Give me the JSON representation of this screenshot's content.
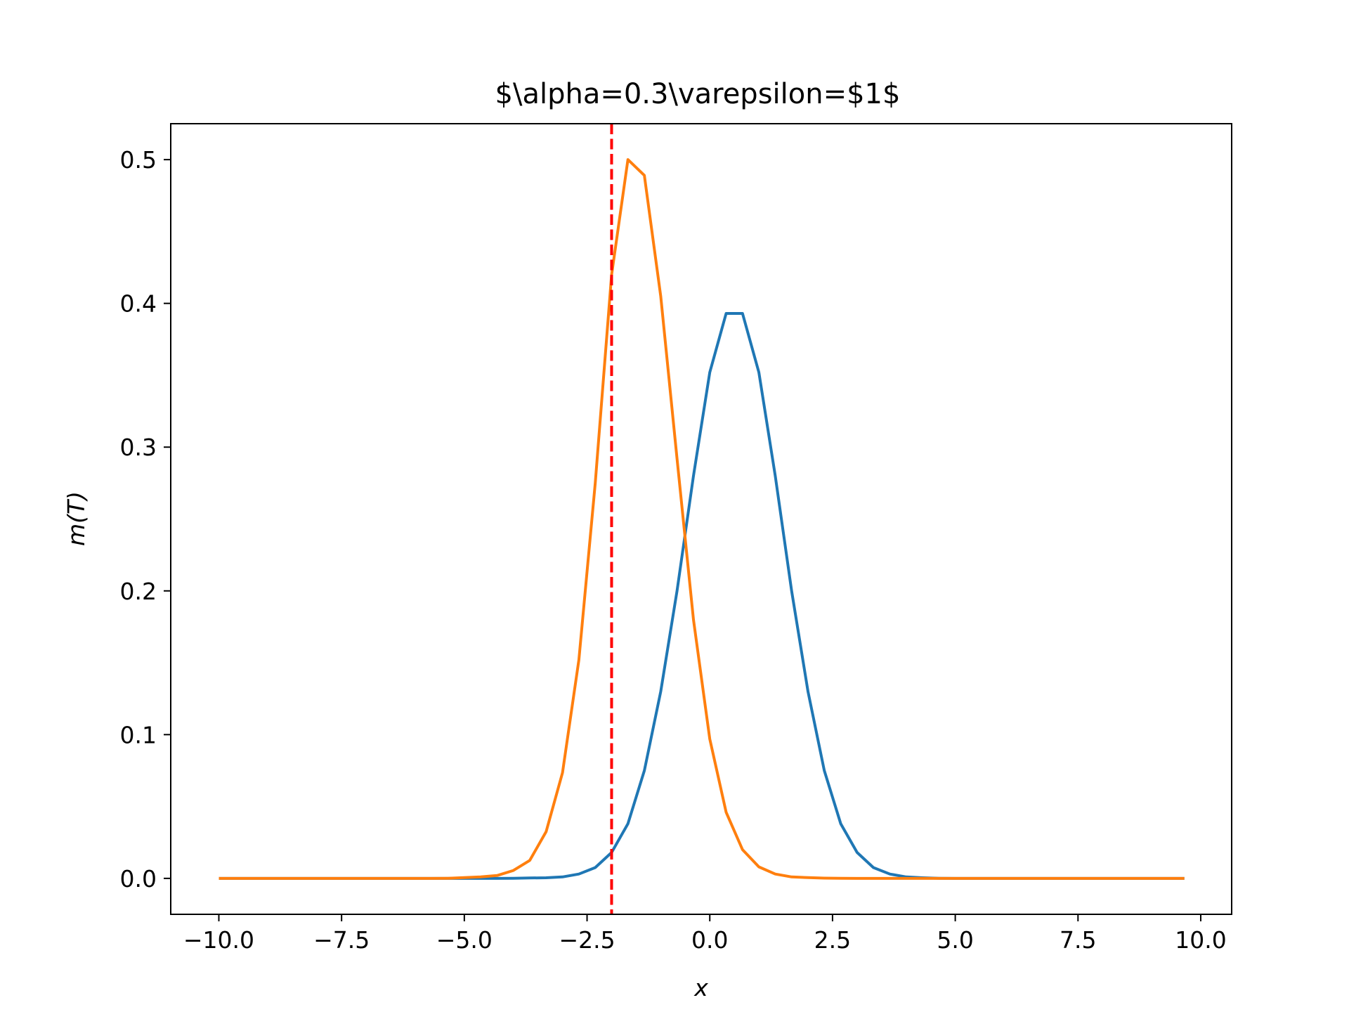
{
  "chart_data": {
    "type": "line",
    "title": "$\\alpha=0.3\\varepsilon=$1$",
    "xlabel": "x",
    "ylabel": "m(T)",
    "xlim": [
      -10.98,
      10.63
    ],
    "ylim": [
      -0.025,
      0.525
    ],
    "xticks": [
      -10.0,
      -7.5,
      -5.0,
      -2.5,
      0.0,
      2.5,
      5.0,
      7.5,
      10.0
    ],
    "xtick_labels": [
      "−10.0",
      "−7.5",
      "−5.0",
      "−2.5",
      "0.0",
      "2.5",
      "5.0",
      "7.5",
      "10.0"
    ],
    "yticks": [
      0.0,
      0.1,
      0.2,
      0.3,
      0.4,
      0.5
    ],
    "ytick_labels": [
      "0.0",
      "0.1",
      "0.2",
      "0.3",
      "0.4",
      "0.5"
    ],
    "grid": false,
    "legend": null,
    "vline": {
      "x": -2.0,
      "color": "#ff0000",
      "style": "dashed"
    },
    "x": [
      -10.0,
      -9.667,
      -9.333,
      -9.0,
      -8.667,
      -8.333,
      -8.0,
      -7.667,
      -7.333,
      -7.0,
      -6.667,
      -6.333,
      -6.0,
      -5.667,
      -5.333,
      -5.0,
      -4.667,
      -4.333,
      -4.0,
      -3.667,
      -3.333,
      -3.0,
      -2.667,
      -2.333,
      -2.0,
      -1.667,
      -1.333,
      -1.0,
      -0.667,
      -0.333,
      0.0,
      0.333,
      0.667,
      1.0,
      1.333,
      1.667,
      2.0,
      2.333,
      2.667,
      3.0,
      3.333,
      3.667,
      4.0,
      4.333,
      4.667,
      5.0,
      5.333,
      5.667,
      6.0,
      6.333,
      6.667,
      7.0,
      7.333,
      7.667,
      8.0,
      8.333,
      8.667,
      9.0,
      9.333,
      9.667
    ],
    "series": [
      {
        "color": "#1f77b4",
        "values": [
          0,
          0,
          0,
          0,
          0,
          0,
          0,
          0,
          0,
          0,
          0,
          0,
          0,
          0,
          0,
          0,
          0,
          0,
          0.0001,
          0.0003,
          0.0004,
          0.001,
          0.003,
          0.0075,
          0.018,
          0.038,
          0.075,
          0.13,
          0.2,
          0.28,
          0.352,
          0.393,
          0.393,
          0.352,
          0.28,
          0.2,
          0.13,
          0.075,
          0.038,
          0.018,
          0.0075,
          0.003,
          0.001,
          0.0004,
          0.0001,
          0,
          0,
          0,
          0,
          0,
          0,
          0,
          0,
          0,
          0,
          0,
          0,
          0,
          0,
          0
        ]
      },
      {
        "color": "#ff7f0e",
        "values": [
          0,
          0,
          0,
          0,
          0,
          0,
          0,
          0,
          0,
          0,
          0,
          0,
          0,
          0,
          0.0001,
          0.0005,
          0.001,
          0.002,
          0.0055,
          0.0125,
          0.0325,
          0.0735,
          0.152,
          0.275,
          0.42,
          0.5,
          0.489,
          0.405,
          0.292,
          0.18,
          0.097,
          0.046,
          0.02,
          0.008,
          0.003,
          0.001,
          0.0005,
          0.0002,
          0.0001,
          0,
          0,
          0,
          0,
          0,
          0,
          0,
          0,
          0,
          0,
          0,
          0,
          0,
          0,
          0,
          0,
          0,
          0,
          0,
          0,
          0
        ]
      }
    ]
  }
}
